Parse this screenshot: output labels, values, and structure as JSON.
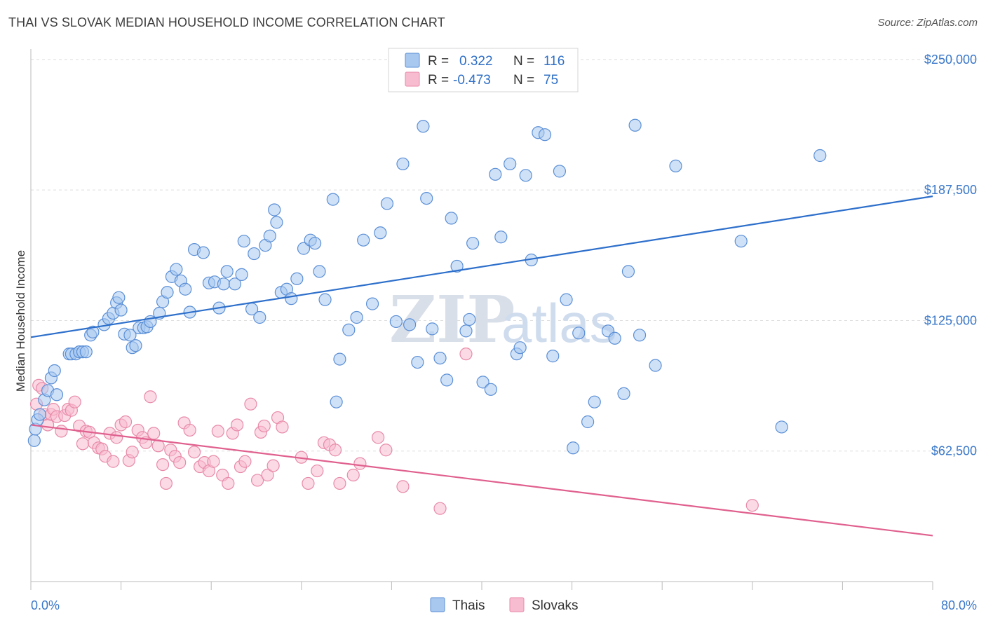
{
  "header": {
    "title": "THAI VS SLOVAK MEDIAN HOUSEHOLD INCOME CORRELATION CHART",
    "source": "Source: ZipAtlas.com"
  },
  "watermark": {
    "zip": "ZIP",
    "atlas": "atlas"
  },
  "colors": {
    "thai_fill": "#a8c8f0",
    "thai_stroke": "#5b8fd6",
    "thai_line": "#2d6fcb",
    "slovak_fill": "#f8bcd0",
    "slovak_stroke": "#e88aa8",
    "slovak_line": "#e0608e",
    "grid": "#dddddd",
    "tick_label": "#3a78c9"
  },
  "legend": {
    "rows": [
      {
        "r_label": "R =",
        "r_value": "0.322",
        "n_label": "N =",
        "n_value": "116"
      },
      {
        "r_label": "R =",
        "r_value": "-0.473",
        "n_label": "N =",
        "n_value": "75"
      }
    ],
    "bottom": [
      "Thais",
      "Slovaks"
    ]
  },
  "chart_data": {
    "type": "scatter",
    "xlabel": "",
    "ylabel": "Median Household Income",
    "xlim": [
      0,
      80
    ],
    "ylim": [
      0,
      255000
    ],
    "x_tick_labels": [
      "0.0%",
      "80.0%"
    ],
    "y_ticks": [
      62500,
      125000,
      187500,
      250000
    ],
    "y_tick_labels": [
      "$62,500",
      "$125,000",
      "$187,500",
      "$250,000"
    ],
    "series": [
      {
        "name": "Thais",
        "trend": {
          "x": [
            0,
            80
          ],
          "y": [
            117000,
            184500
          ]
        },
        "points": [
          [
            0.3,
            67500
          ],
          [
            0.4,
            73000
          ],
          [
            0.6,
            77500
          ],
          [
            0.8,
            80000
          ],
          [
            1.2,
            87000
          ],
          [
            1.5,
            91500
          ],
          [
            1.8,
            97500
          ],
          [
            2.1,
            101000
          ],
          [
            2.3,
            89500
          ],
          [
            3.4,
            109000
          ],
          [
            3.6,
            109000
          ],
          [
            4.0,
            109000
          ],
          [
            4.3,
            110000
          ],
          [
            4.6,
            110000
          ],
          [
            4.9,
            110000
          ],
          [
            5.3,
            118000
          ],
          [
            5.5,
            119500
          ],
          [
            6.5,
            123000
          ],
          [
            6.9,
            126000
          ],
          [
            7.3,
            128500
          ],
          [
            7.6,
            133500
          ],
          [
            7.8,
            136000
          ],
          [
            8.0,
            130000
          ],
          [
            8.3,
            118500
          ],
          [
            8.8,
            118000
          ],
          [
            9.0,
            112000
          ],
          [
            9.3,
            113000
          ],
          [
            9.6,
            121500
          ],
          [
            10.0,
            121500
          ],
          [
            10.3,
            122000
          ],
          [
            10.6,
            124500
          ],
          [
            11.4,
            128500
          ],
          [
            11.7,
            134000
          ],
          [
            12.1,
            138500
          ],
          [
            12.5,
            146000
          ],
          [
            12.9,
            149500
          ],
          [
            13.3,
            144000
          ],
          [
            13.7,
            140000
          ],
          [
            14.1,
            129000
          ],
          [
            14.5,
            159000
          ],
          [
            15.3,
            157500
          ],
          [
            15.8,
            143000
          ],
          [
            16.3,
            143500
          ],
          [
            16.7,
            131000
          ],
          [
            17.1,
            142500
          ],
          [
            17.4,
            148500
          ],
          [
            18.1,
            142500
          ],
          [
            18.7,
            147000
          ],
          [
            18.9,
            163000
          ],
          [
            19.6,
            130500
          ],
          [
            19.8,
            157000
          ],
          [
            20.3,
            126500
          ],
          [
            20.8,
            161000
          ],
          [
            21.2,
            165500
          ],
          [
            21.8,
            172000
          ],
          [
            21.6,
            178000
          ],
          [
            22.2,
            138500
          ],
          [
            22.7,
            140000
          ],
          [
            23.1,
            135500
          ],
          [
            23.6,
            145000
          ],
          [
            24.2,
            159500
          ],
          [
            24.8,
            163500
          ],
          [
            25.2,
            162000
          ],
          [
            25.6,
            148500
          ],
          [
            26.1,
            135000
          ],
          [
            26.8,
            183000
          ],
          [
            27.1,
            86000
          ],
          [
            27.4,
            106500
          ],
          [
            28.2,
            120500
          ],
          [
            28.9,
            126500
          ],
          [
            29.5,
            163500
          ],
          [
            30.3,
            133000
          ],
          [
            31.0,
            167000
          ],
          [
            31.6,
            181000
          ],
          [
            32.4,
            124500
          ],
          [
            33.0,
            200000
          ],
          [
            33.6,
            123000
          ],
          [
            34.3,
            105000
          ],
          [
            34.8,
            218000
          ],
          [
            35.1,
            183500
          ],
          [
            35.6,
            121000
          ],
          [
            36.3,
            107000
          ],
          [
            36.9,
            96500
          ],
          [
            37.3,
            174000
          ],
          [
            37.8,
            151000
          ],
          [
            38.6,
            120000
          ],
          [
            38.9,
            125500
          ],
          [
            39.2,
            162000
          ],
          [
            40.1,
            95500
          ],
          [
            40.8,
            92000
          ],
          [
            41.2,
            195000
          ],
          [
            41.7,
            165000
          ],
          [
            42.5,
            200000
          ],
          [
            43.1,
            109000
          ],
          [
            43.4,
            112000
          ],
          [
            43.9,
            194500
          ],
          [
            44.4,
            154000
          ],
          [
            45.0,
            215000
          ],
          [
            45.6,
            214000
          ],
          [
            46.3,
            108000
          ],
          [
            46.9,
            196500
          ],
          [
            47.5,
            135000
          ],
          [
            48.1,
            64000
          ],
          [
            48.6,
            119000
          ],
          [
            49.4,
            76500
          ],
          [
            50.0,
            86000
          ],
          [
            51.2,
            120000
          ],
          [
            51.8,
            116500
          ],
          [
            52.6,
            90000
          ],
          [
            53.0,
            148500
          ],
          [
            53.6,
            218500
          ],
          [
            54.0,
            118000
          ],
          [
            55.4,
            103500
          ],
          [
            57.2,
            199000
          ],
          [
            63.0,
            163000
          ],
          [
            66.6,
            74000
          ],
          [
            70.0,
            204000
          ]
        ]
      },
      {
        "name": "Slovaks",
        "trend": {
          "x": [
            0,
            80
          ],
          "y": [
            75000,
            22000
          ]
        },
        "points": [
          [
            0.5,
            85000
          ],
          [
            0.7,
            94000
          ],
          [
            1.0,
            92500
          ],
          [
            1.2,
            80000
          ],
          [
            1.5,
            75000
          ],
          [
            1.8,
            80000
          ],
          [
            2.0,
            82500
          ],
          [
            2.3,
            79000
          ],
          [
            2.7,
            72000
          ],
          [
            3.0,
            79500
          ],
          [
            3.3,
            82500
          ],
          [
            3.6,
            82000
          ],
          [
            3.9,
            86000
          ],
          [
            4.3,
            74500
          ],
          [
            4.6,
            66000
          ],
          [
            4.9,
            72000
          ],
          [
            5.2,
            71500
          ],
          [
            5.6,
            66500
          ],
          [
            6.0,
            64000
          ],
          [
            6.3,
            63500
          ],
          [
            6.6,
            60000
          ],
          [
            7.0,
            71000
          ],
          [
            7.3,
            57500
          ],
          [
            7.6,
            69000
          ],
          [
            8.0,
            75000
          ],
          [
            8.4,
            76500
          ],
          [
            8.7,
            58000
          ],
          [
            9.0,
            62000
          ],
          [
            9.5,
            72500
          ],
          [
            9.9,
            69000
          ],
          [
            10.2,
            66500
          ],
          [
            10.6,
            88500
          ],
          [
            10.9,
            71000
          ],
          [
            11.3,
            65000
          ],
          [
            11.7,
            56000
          ],
          [
            12.0,
            47000
          ],
          [
            12.4,
            63000
          ],
          [
            12.8,
            60000
          ],
          [
            13.2,
            57000
          ],
          [
            13.6,
            76000
          ],
          [
            14.1,
            72500
          ],
          [
            14.5,
            62000
          ],
          [
            15.0,
            55000
          ],
          [
            15.4,
            57000
          ],
          [
            15.8,
            53000
          ],
          [
            16.2,
            57500
          ],
          [
            16.6,
            72000
          ],
          [
            17.0,
            51000
          ],
          [
            17.5,
            47000
          ],
          [
            17.9,
            71000
          ],
          [
            18.3,
            75000
          ],
          [
            18.6,
            55000
          ],
          [
            19.0,
            57500
          ],
          [
            19.5,
            85000
          ],
          [
            20.1,
            48500
          ],
          [
            20.4,
            71500
          ],
          [
            20.7,
            74500
          ],
          [
            21.0,
            51000
          ],
          [
            21.5,
            55500
          ],
          [
            21.9,
            78500
          ],
          [
            22.3,
            74000
          ],
          [
            24.0,
            59500
          ],
          [
            24.6,
            47000
          ],
          [
            25.4,
            53000
          ],
          [
            26.0,
            66500
          ],
          [
            26.5,
            65500
          ],
          [
            27.0,
            63000
          ],
          [
            27.4,
            47000
          ],
          [
            28.6,
            51000
          ],
          [
            29.2,
            56500
          ],
          [
            30.8,
            69000
          ],
          [
            31.5,
            63000
          ],
          [
            33.0,
            45500
          ],
          [
            36.3,
            35000
          ],
          [
            38.6,
            109000
          ],
          [
            64.0,
            36500
          ]
        ]
      }
    ]
  }
}
